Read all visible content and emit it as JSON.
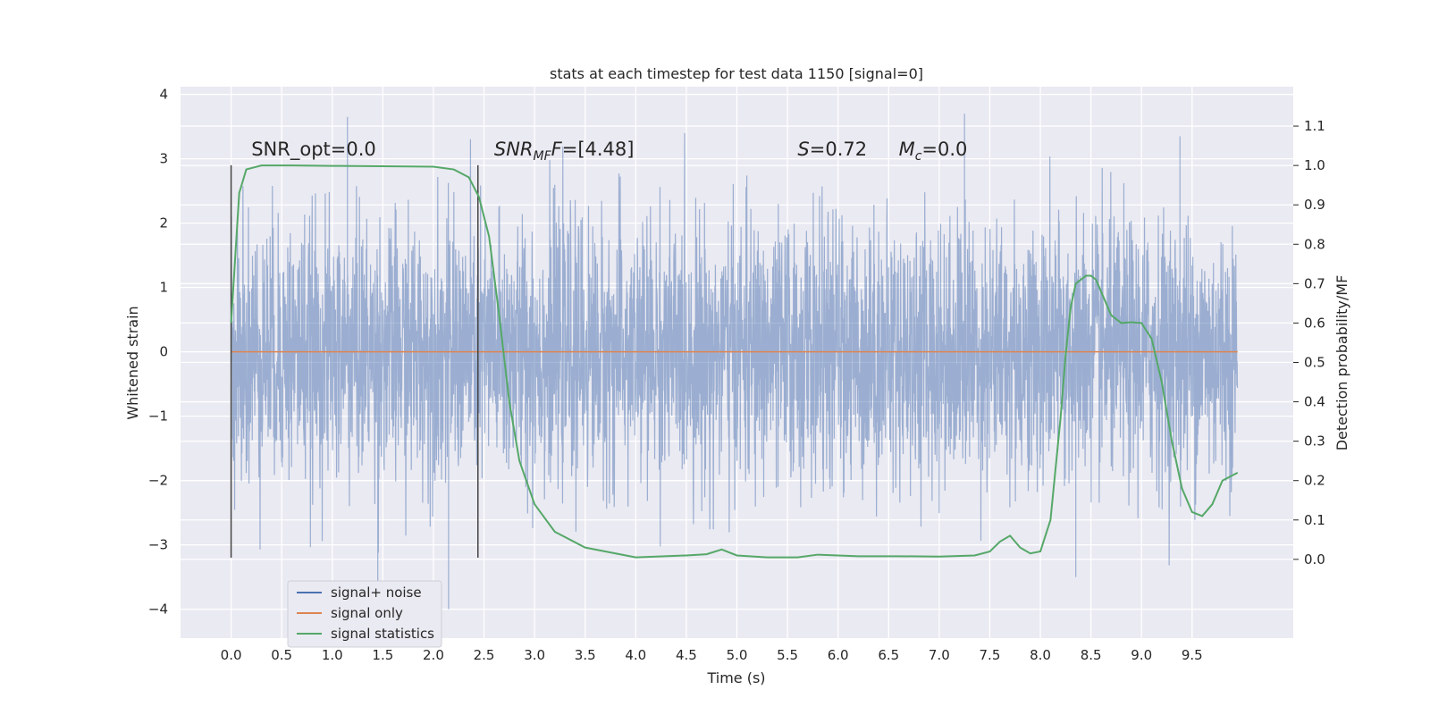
{
  "chart_data": {
    "type": "line",
    "title": "stats at each timestep for test data 1150 [signal=0]",
    "xlabel": "Time (s)",
    "ylabel": "Whitened strain",
    "y2label": "Detection probability/MF",
    "xlim": [
      -0.5,
      10.5
    ],
    "ylim": [
      -4.45,
      4.12
    ],
    "y2lim": [
      -0.2,
      1.2
    ],
    "x_ticks": [
      0.0,
      0.5,
      1.0,
      1.5,
      2.0,
      2.5,
      3.0,
      3.5,
      4.0,
      4.5,
      5.0,
      5.5,
      6.0,
      6.5,
      7.0,
      7.5,
      8.0,
      8.5,
      9.0,
      9.5
    ],
    "x_tick_labels": [
      "0.0",
      "0.5",
      "1.0",
      "1.5",
      "2.0",
      "2.5",
      "3.0",
      "3.5",
      "4.0",
      "4.5",
      "5.0",
      "5.5",
      "6.0",
      "6.5",
      "7.0",
      "7.5",
      "8.0",
      "8.5",
      "9.0",
      "9.5"
    ],
    "y_ticks": [
      -4,
      -3,
      -2,
      -1,
      0,
      1,
      2,
      3,
      4
    ],
    "y_tick_labels": [
      "−4",
      "−3",
      "−2",
      "−1",
      "0",
      "1",
      "2",
      "3",
      "4"
    ],
    "y2_ticks": [
      0.0,
      0.1,
      0.2,
      0.3,
      0.4,
      0.5,
      0.6,
      0.7,
      0.8,
      0.9,
      1.0,
      1.1
    ],
    "y2_tick_labels": [
      "0.0",
      "0.1",
      "0.2",
      "0.3",
      "0.4",
      "0.5",
      "0.6",
      "0.7",
      "0.8",
      "0.9",
      "1.0",
      "1.1"
    ],
    "grid": true,
    "legend_position": "lower-left",
    "series": [
      {
        "name": "signal+ noise",
        "kind": "noise",
        "color": "#4c72b0",
        "x_range": [
          0.0,
          9.95
        ],
        "typical_amplitude": 1.0,
        "peak_values": [
          3.65,
          -4.0,
          3.35,
          -3.8,
          3.7,
          -3.5
        ]
      },
      {
        "name": "signal only",
        "kind": "flat",
        "color": "#dd8452",
        "x": [
          0.0,
          9.95
        ],
        "y": [
          0.0,
          0.0
        ]
      },
      {
        "name": "signal statistics",
        "kind": "line",
        "axis": "right",
        "color": "#55a868",
        "x": [
          0.0,
          0.08,
          0.15,
          0.3,
          0.6,
          1.0,
          1.5,
          2.0,
          2.2,
          2.35,
          2.45,
          2.55,
          2.65,
          2.75,
          2.85,
          3.0,
          3.2,
          3.5,
          4.0,
          4.5,
          4.7,
          4.85,
          5.0,
          5.3,
          5.6,
          5.8,
          6.2,
          6.6,
          7.0,
          7.35,
          7.5,
          7.6,
          7.7,
          7.8,
          7.9,
          8.0,
          8.1,
          8.2,
          8.25,
          8.3,
          8.35,
          8.4,
          8.45,
          8.5,
          8.55,
          8.6,
          8.7,
          8.8,
          8.9,
          9.0,
          9.05,
          9.1,
          9.2,
          9.3,
          9.4,
          9.5,
          9.6,
          9.7,
          9.8,
          9.95
        ],
        "y": [
          0.6,
          0.93,
          0.99,
          1.0,
          1.0,
          0.999,
          0.998,
          0.997,
          0.99,
          0.97,
          0.92,
          0.82,
          0.62,
          0.4,
          0.25,
          0.14,
          0.07,
          0.03,
          0.005,
          0.01,
          0.013,
          0.025,
          0.01,
          0.005,
          0.005,
          0.012,
          0.008,
          0.008,
          0.007,
          0.01,
          0.02,
          0.045,
          0.06,
          0.03,
          0.015,
          0.02,
          0.1,
          0.36,
          0.52,
          0.64,
          0.7,
          0.71,
          0.72,
          0.72,
          0.71,
          0.68,
          0.62,
          0.6,
          0.602,
          0.6,
          0.58,
          0.56,
          0.45,
          0.3,
          0.18,
          0.12,
          0.11,
          0.14,
          0.2,
          0.22
        ]
      }
    ],
    "vlines": [
      {
        "x": 0.0,
        "y_from": -3.2,
        "y_to": 2.9
      },
      {
        "x": 2.44,
        "y_from": -3.2,
        "y_to": 2.9
      }
    ],
    "annotations": [
      {
        "id": "snr-opt",
        "x": 0.2,
        "y": 3.05,
        "parts": [
          {
            "t": "SNR_opt=0.0",
            "i": false
          }
        ]
      },
      {
        "id": "snr-mf",
        "x": 2.6,
        "y": 3.05,
        "parts": [
          {
            "t": "SNR",
            "i": true
          },
          {
            "t": "MF",
            "i": true,
            "sub": true
          },
          {
            "t": "F",
            "i": true
          },
          {
            "t": "=[4.48]",
            "i": false
          }
        ]
      },
      {
        "id": "s-value",
        "x": 5.6,
        "y": 3.05,
        "parts": [
          {
            "t": "S",
            "i": true
          },
          {
            "t": "=0.72",
            "i": false
          }
        ]
      },
      {
        "id": "mc-value",
        "x": 6.6,
        "y": 3.05,
        "parts": [
          {
            "t": "M",
            "i": true
          },
          {
            "t": "c",
            "i": true,
            "sub": true
          },
          {
            "t": "=0.0",
            "i": false
          }
        ]
      }
    ]
  }
}
